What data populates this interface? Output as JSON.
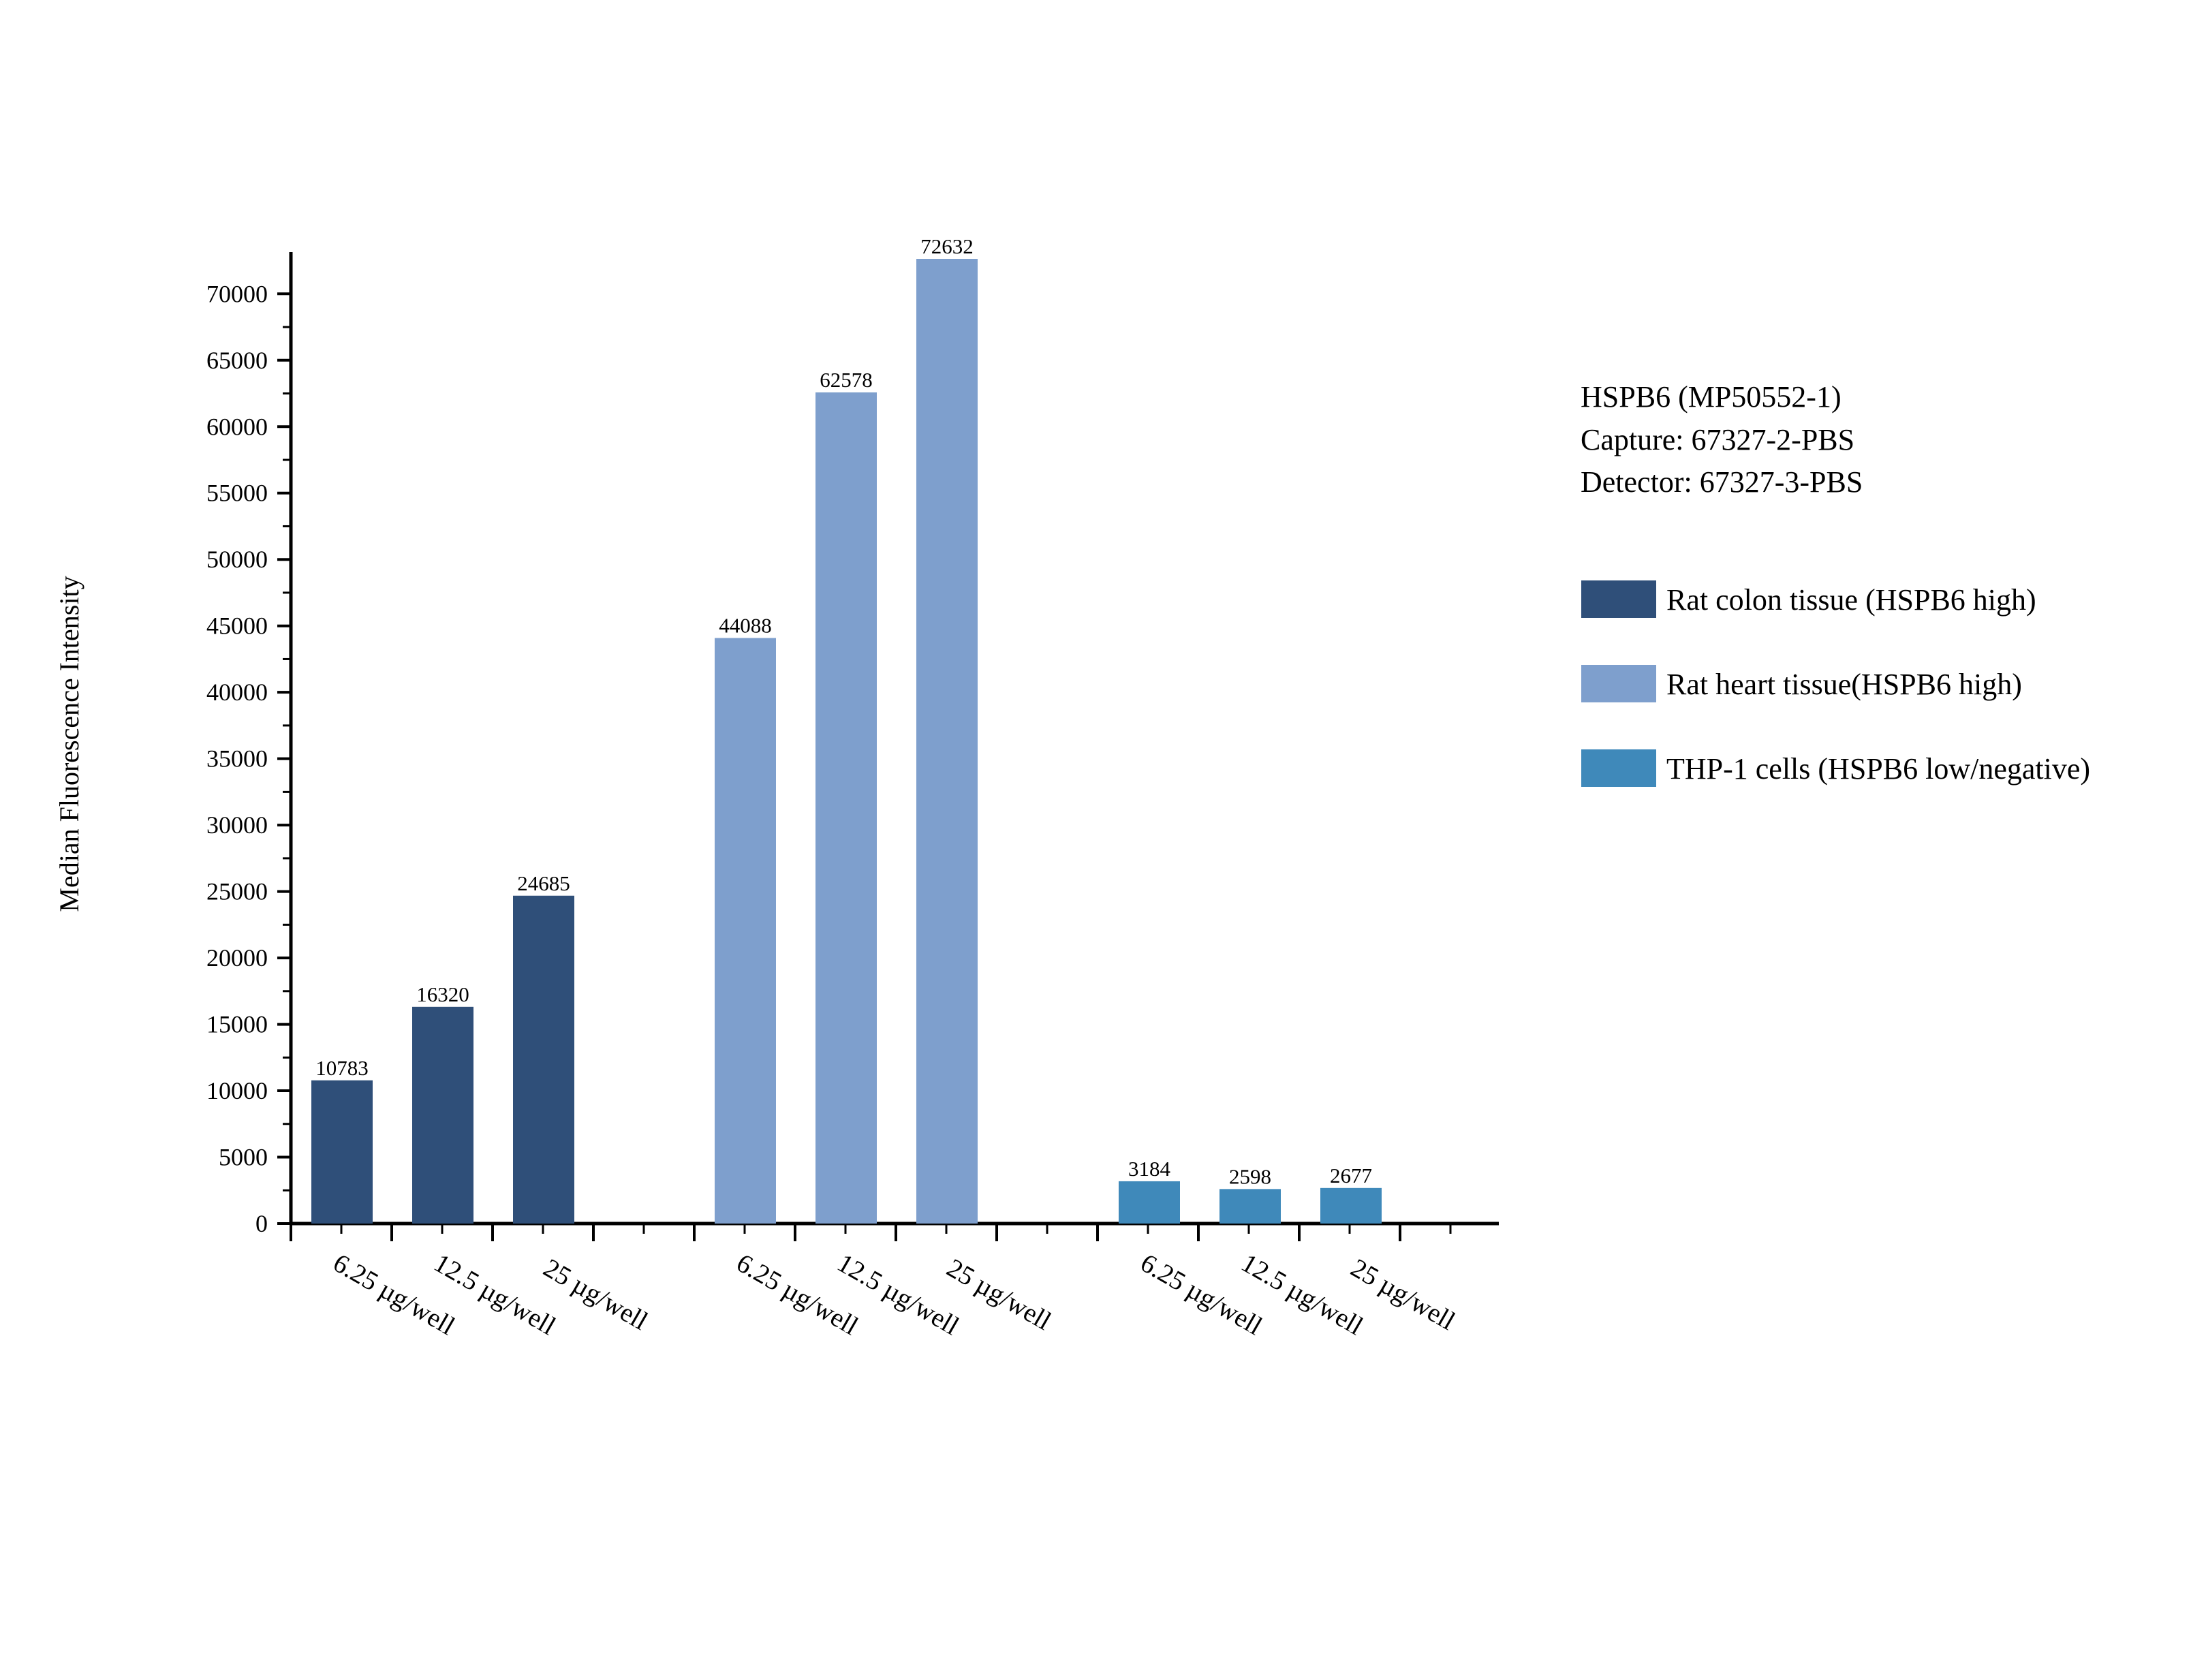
{
  "chart_data": {
    "type": "bar",
    "title": "",
    "xlabel": "",
    "ylabel": "Median Fluorescence Intensity",
    "ylim": [
      0,
      72632
    ],
    "yticks": [
      0,
      5000,
      10000,
      15000,
      20000,
      25000,
      30000,
      35000,
      40000,
      45000,
      50000,
      55000,
      60000,
      65000,
      70000
    ],
    "grid": false,
    "legend_position": "right",
    "categories": [
      "6.25 µg/well",
      "12.5 µg/well",
      "25 µg/well"
    ],
    "series": [
      {
        "name": "Rat colon tissue (HSPB6 high)",
        "color": "#2f4f79",
        "values": [
          10783,
          16320,
          24685
        ],
        "labels": [
          "10783",
          "16320",
          "24685"
        ]
      },
      {
        "name": "Rat heart tissue(HSPB6 high)",
        "color": "#7e9fcd",
        "values": [
          44088,
          62578,
          72632
        ],
        "labels": [
          "44088",
          "62578",
          "72632"
        ]
      },
      {
        "name": "THP-1 cells (HSPB6 low/negative)",
        "color": "#3f89ba",
        "values": [
          3184,
          2598,
          2677
        ],
        "labels": [
          "3184",
          "2598",
          "2677"
        ]
      }
    ],
    "annotation_lines": [
      "HSPB6 (MP50552-1)",
      "Capture: 67327-2-PBS",
      "Detector: 67327-3-PBS"
    ]
  }
}
